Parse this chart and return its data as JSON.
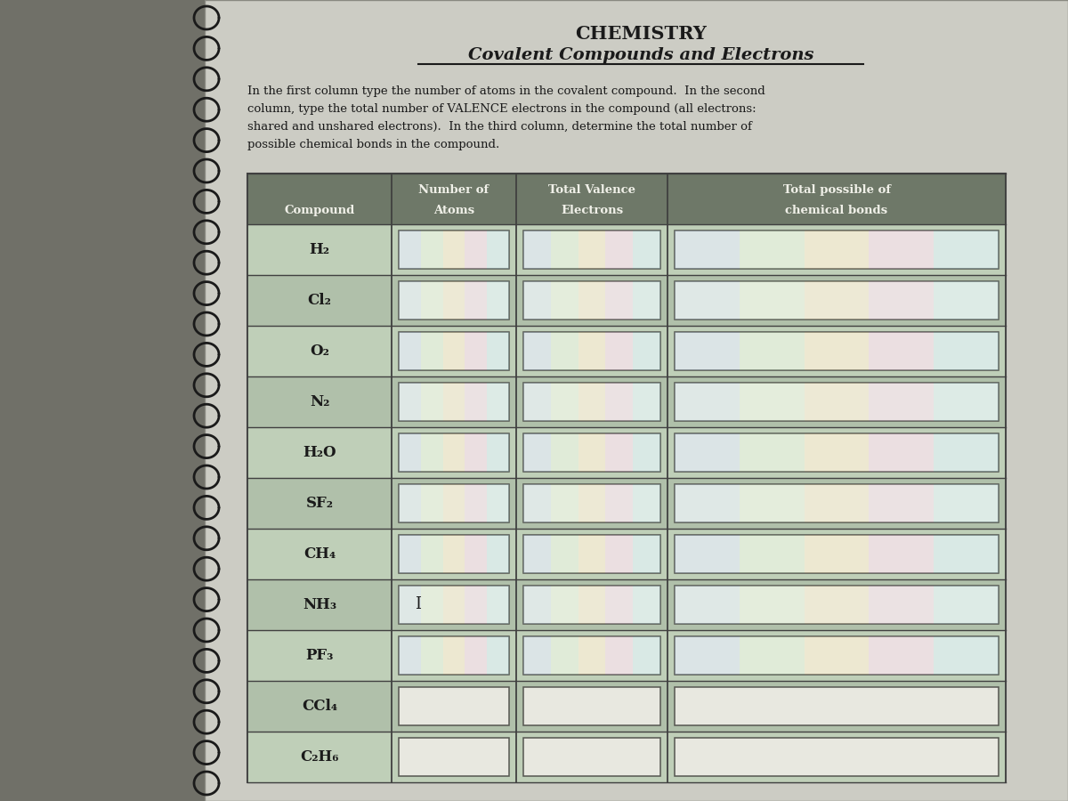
{
  "title_line1": "CHEMISTRY",
  "title_line2": "Covalent Compounds and Electrons",
  "description_line1": "In the first column type the number of atoms in the covalent compound.  In the second",
  "description_line2": "column, type the total number of VALENCE electrons in the compound (all electrons:",
  "description_line3": "shared and unshared electrons).  In the third column, determine the total number of",
  "description_line4": "possible chemical bonds in the compound.",
  "col_headers_row1": [
    "",
    "Number of",
    "Total Valence",
    "Total possible of"
  ],
  "col_headers_row2": [
    "Compound",
    "Atoms",
    "Electrons",
    "chemical bonds"
  ],
  "compounds": [
    "H₂",
    "Cl₂",
    "O₂",
    "N₂",
    "H₂O",
    "SF₂",
    "CH₄",
    "NH₃",
    "PF₃",
    "CCl₄",
    "C₂H₆"
  ],
  "bg_left_color": "#9a9a92",
  "page_color": "#ccccc4",
  "table_row_color": "#b8c4b0",
  "header_bg": "#6e7868",
  "input_box_color": "#e8e8e0",
  "spiral_color": "#1a1a1a",
  "text_color": "#1a1a1a",
  "border_color": "#404040"
}
